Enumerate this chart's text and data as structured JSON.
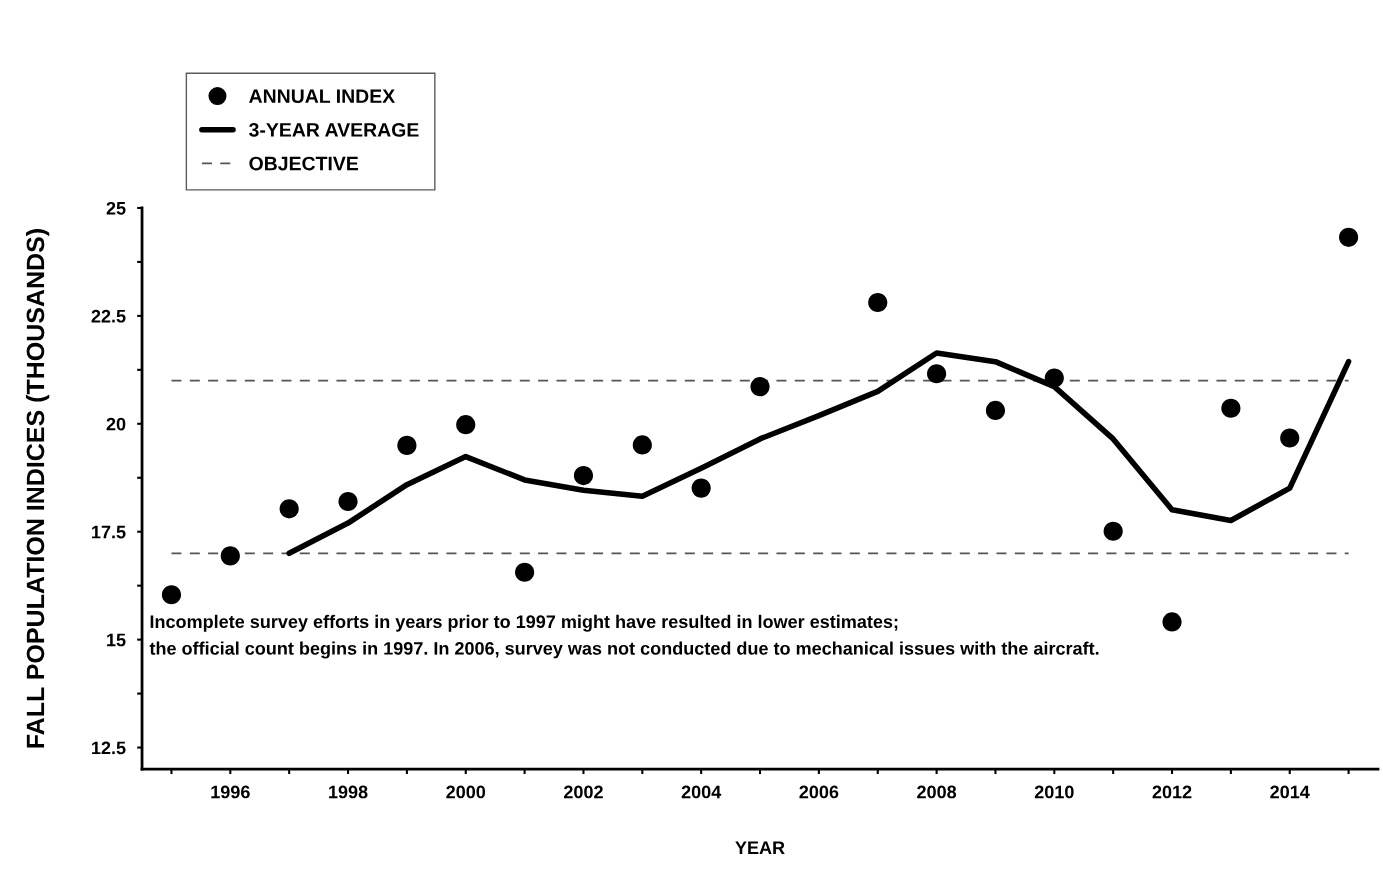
{
  "chart_data": {
    "type": "scatter",
    "xlabel": "YEAR",
    "ylabel": "FALL POPULATION INDICES (THOUSANDS)",
    "series": [
      {
        "name": "ANNUAL INDEX",
        "color": "#000000",
        "marker": "circle",
        "x": [
          1995,
          1996,
          1997,
          1998,
          1999,
          2000,
          2001,
          2002,
          2003,
          2004,
          2005,
          2006,
          2007,
          2008,
          2009,
          2010,
          2011,
          2012,
          2013,
          2014,
          2015
        ],
        "values": [
          16.04,
          16.94,
          18.03,
          18.2,
          19.5,
          19.98,
          16.56,
          18.8,
          19.51,
          18.51,
          20.86,
          null,
          22.81,
          21.16,
          20.31,
          21.06,
          17.51,
          15.41,
          20.36,
          19.67,
          24.32
        ]
      },
      {
        "name": "3-YEAR AVERAGE",
        "type": "line",
        "color": "#000000",
        "marker": "none",
        "line_style": "solid",
        "x": [
          1997,
          1998,
          1999,
          2000,
          2001,
          2002,
          2003,
          2004,
          2005,
          2006,
          2007,
          2008,
          2009,
          2010,
          2011,
          2012,
          2013,
          2014,
          2015
        ],
        "values": [
          17.0,
          17.7,
          18.59,
          19.24,
          18.7,
          18.46,
          18.32,
          18.97,
          19.65,
          20.19,
          20.75,
          21.64,
          21.44,
          20.86,
          19.65,
          18.01,
          17.76,
          18.51,
          21.44
        ]
      }
    ],
    "ref_lines": [
      {
        "axis": "y",
        "value": 21,
        "label": "OBJECTIVE",
        "color": "#555555",
        "line_style": "dashed"
      },
      {
        "axis": "y",
        "value": 17,
        "color": "#555555",
        "line_style": "dashed"
      }
    ],
    "annotations": [
      {
        "text": "Incomplete survey efforts in years prior to 1997 might have resulted in lower estimates;\nthe official count begins in 1997. In 2006, survey was not conducted due to mechanical issues with the aircraft."
      }
    ],
    "xlim": [
      1994.5,
      2015.5
    ],
    "xticks": [
      {
        "value": 1995,
        "label": null
      },
      1996,
      {
        "value": 1997,
        "label": null
      },
      1998,
      {
        "value": 1999,
        "label": null
      },
      2000,
      {
        "value": 2001,
        "label": null
      },
      2002,
      {
        "value": 2003,
        "label": null
      },
      2004,
      {
        "value": 2005,
        "label": null
      },
      2006,
      {
        "value": 2007,
        "label": null
      },
      2008,
      {
        "value": 2009,
        "label": null
      },
      2010,
      {
        "value": 2011,
        "label": null
      },
      2012,
      {
        "value": 2013,
        "label": null
      },
      2014,
      {
        "value": 2015,
        "label": null
      }
    ],
    "ylim": [
      12,
      25
    ],
    "yticks": [
      {
        "value": 12.5,
        "label": "12.5"
      },
      {
        "value": 13.75,
        "label": null
      },
      15,
      {
        "value": 16.25,
        "label": null
      },
      {
        "value": 17.5,
        "label": "17.5"
      },
      {
        "value": 18.75,
        "label": null
      },
      20,
      {
        "value": 21.25,
        "label": null
      },
      {
        "value": 22.5,
        "label": "22.5"
      },
      {
        "value": 23.75,
        "label": null
      },
      25
    ],
    "grid": false,
    "legend": "top left"
  }
}
